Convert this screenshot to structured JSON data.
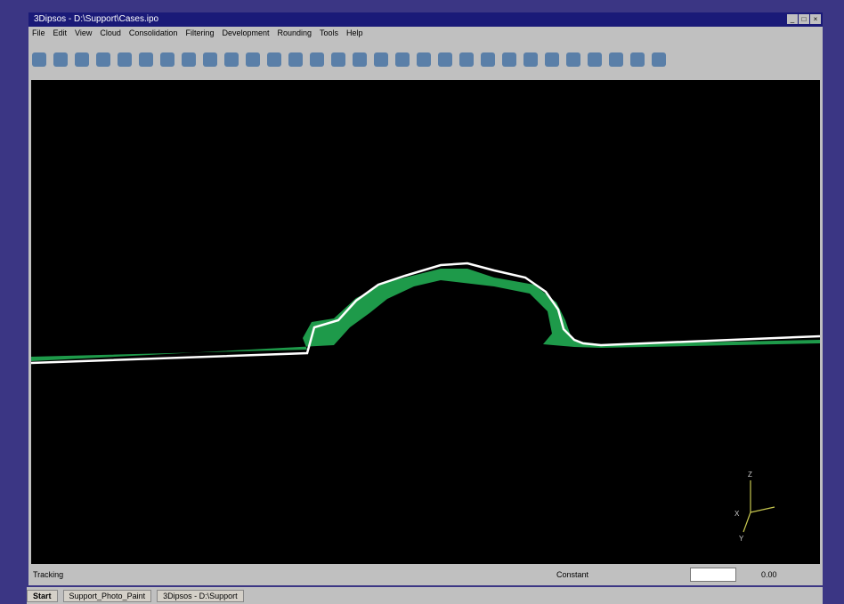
{
  "window": {
    "title": "3Dipsos - D:\\Support\\Cases.ipo",
    "controls": [
      "_",
      "□",
      "×"
    ]
  },
  "menu": {
    "items": [
      "File",
      "Edit",
      "View",
      "Cloud",
      "Consolidation",
      "Filtering",
      "Development",
      "Rounding",
      "Tools",
      "Help"
    ]
  },
  "status": {
    "left": "Tracking",
    "mode": "Constant",
    "value": "0.00"
  },
  "viewport": {
    "axes": [
      "Z",
      "X",
      "Y"
    ]
  },
  "taskbar": {
    "start": "Start",
    "tasks": [
      "Support_Photo_Paint",
      "3Dipsos - D:\\Support"
    ]
  }
}
